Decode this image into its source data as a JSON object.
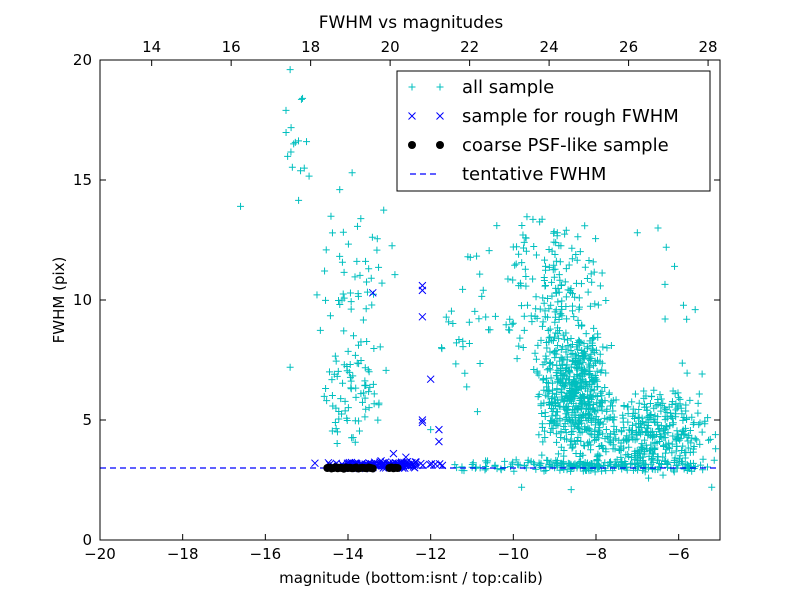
{
  "chart_data": {
    "type": "scatter",
    "title": "FWHM vs magnitudes",
    "xlabel": "magnitude (bottom:isnt / top:calib)",
    "ylabel": "FWHM (pix)",
    "xlim": [
      -20,
      -5
    ],
    "ylim": [
      0,
      20
    ],
    "top_xlim": [
      12.7,
      28.3
    ],
    "x_ticks": [
      -20,
      -18,
      -16,
      -14,
      -12,
      -10,
      -8,
      -6
    ],
    "y_ticks": [
      0,
      5,
      10,
      15,
      20
    ],
    "top_x_ticks": [
      14,
      16,
      18,
      20,
      22,
      24,
      26,
      28
    ],
    "grid": false,
    "legend_position": "top-right",
    "colors": {
      "all_sample": "#00bfbf",
      "rough": "#0000ff",
      "coarse": "#000000",
      "tentative": "#0000ff"
    },
    "series": [
      {
        "name": "all sample",
        "marker": "plus",
        "clusters": [
          {
            "x": [
              -15.6,
              -14.8
            ],
            "y": [
              11.5,
              20.0
            ],
            "n": 14
          },
          {
            "x": [
              -14.9,
              -12.8
            ],
            "y": [
              6.0,
              15.3
            ],
            "n": 55
          },
          {
            "x": [
              -14.8,
              -13.0
            ],
            "y": [
              3.8,
              8.5
            ],
            "n": 70
          },
          {
            "x": [
              -12.0,
              -10.2
            ],
            "y": [
              3.6,
              13.1
            ],
            "n": 30
          },
          {
            "x": [
              -10.3,
              -7.5
            ],
            "y": [
              6.0,
              14.0
            ],
            "n": 200
          },
          {
            "x": [
              -9.5,
              -7.6
            ],
            "y": [
              3.2,
              9.0
            ],
            "n": 500
          },
          {
            "x": [
              -8.5,
              -5.0
            ],
            "y": [
              2.5,
              6.5
            ],
            "n": 400
          },
          {
            "x": [
              -6.8,
              -5.0
            ],
            "y": [
              3.5,
              12.5
            ],
            "n": 8
          },
          {
            "x": [
              -11.8,
              -5.0
            ],
            "y": [
              2.8,
              3.4
            ],
            "n": 200
          }
        ],
        "points": [
          {
            "x": -16.6,
            "y": 13.9
          },
          {
            "x": -15.4,
            "y": 19.6
          },
          {
            "x": -15.4,
            "y": 7.2
          },
          {
            "x": -15.1,
            "y": 18.4
          },
          {
            "x": -15.5,
            "y": 17.9
          },
          {
            "x": -14.2,
            "y": 14.6
          },
          {
            "x": -13.9,
            "y": 15.3
          },
          {
            "x": -13.5,
            "y": 11.3
          },
          {
            "x": -12.0,
            "y": 4.6
          },
          {
            "x": -11.1,
            "y": 11.8
          },
          {
            "x": -10.4,
            "y": 13.1
          },
          {
            "x": -8.6,
            "y": 2.1
          },
          {
            "x": -6.5,
            "y": 13.0
          },
          {
            "x": -6.3,
            "y": 12.2
          },
          {
            "x": -6.1,
            "y": 11.4
          },
          {
            "x": -5.6,
            "y": 9.6
          },
          {
            "x": -5.3,
            "y": 5.1
          },
          {
            "x": -5.2,
            "y": 2.2
          },
          {
            "x": -7.0,
            "y": 12.8
          },
          {
            "x": -9.8,
            "y": 2.2
          }
        ]
      },
      {
        "name": "sample for rough FWHM",
        "marker": "x",
        "clusters": [
          {
            "x": [
              -14.7,
              -11.6
            ],
            "y": [
              2.95,
              3.3
            ],
            "n": 150
          }
        ],
        "points": [
          {
            "x": -13.4,
            "y": 10.3
          },
          {
            "x": -12.2,
            "y": 10.6
          },
          {
            "x": -12.2,
            "y": 10.4
          },
          {
            "x": -12.2,
            "y": 9.3
          },
          {
            "x": -12.0,
            "y": 6.7
          },
          {
            "x": -12.2,
            "y": 5.0
          },
          {
            "x": -12.2,
            "y": 4.9
          },
          {
            "x": -11.8,
            "y": 4.6
          },
          {
            "x": -11.8,
            "y": 4.1
          },
          {
            "x": -12.9,
            "y": 3.6
          },
          {
            "x": -12.6,
            "y": 3.45
          },
          {
            "x": -14.8,
            "y": 3.2
          },
          {
            "x": -13.2,
            "y": 3.3
          }
        ]
      },
      {
        "name": "coarse PSF-like sample",
        "marker": "dot",
        "clusters": [],
        "points": [
          {
            "x": -14.5,
            "y": 3.0
          },
          {
            "x": -14.45,
            "y": 3.02
          },
          {
            "x": -14.4,
            "y": 2.98
          },
          {
            "x": -14.35,
            "y": 3.0
          },
          {
            "x": -14.3,
            "y": 3.03
          },
          {
            "x": -14.25,
            "y": 2.99
          },
          {
            "x": -14.2,
            "y": 3.01
          },
          {
            "x": -14.15,
            "y": 3.0
          },
          {
            "x": -14.1,
            "y": 2.97
          },
          {
            "x": -14.05,
            "y": 3.02
          },
          {
            "x": -14.0,
            "y": 3.0
          },
          {
            "x": -13.95,
            "y": 3.01
          },
          {
            "x": -13.9,
            "y": 2.99
          },
          {
            "x": -13.85,
            "y": 3.0
          },
          {
            "x": -13.8,
            "y": 3.02
          },
          {
            "x": -13.75,
            "y": 2.98
          },
          {
            "x": -13.7,
            "y": 3.0
          },
          {
            "x": -13.65,
            "y": 3.01
          },
          {
            "x": -13.6,
            "y": 3.0
          },
          {
            "x": -13.55,
            "y": 2.99
          },
          {
            "x": -13.5,
            "y": 3.02
          },
          {
            "x": -13.45,
            "y": 3.0
          },
          {
            "x": -13.4,
            "y": 2.98
          },
          {
            "x": -13.0,
            "y": 3.0
          },
          {
            "x": -12.95,
            "y": 3.02
          },
          {
            "x": -12.9,
            "y": 2.99
          },
          {
            "x": -12.85,
            "y": 3.01
          },
          {
            "x": -12.8,
            "y": 3.0
          }
        ]
      },
      {
        "name": "tentative FWHM",
        "type": "hline",
        "y": 3.0,
        "style": "dashed"
      }
    ]
  }
}
